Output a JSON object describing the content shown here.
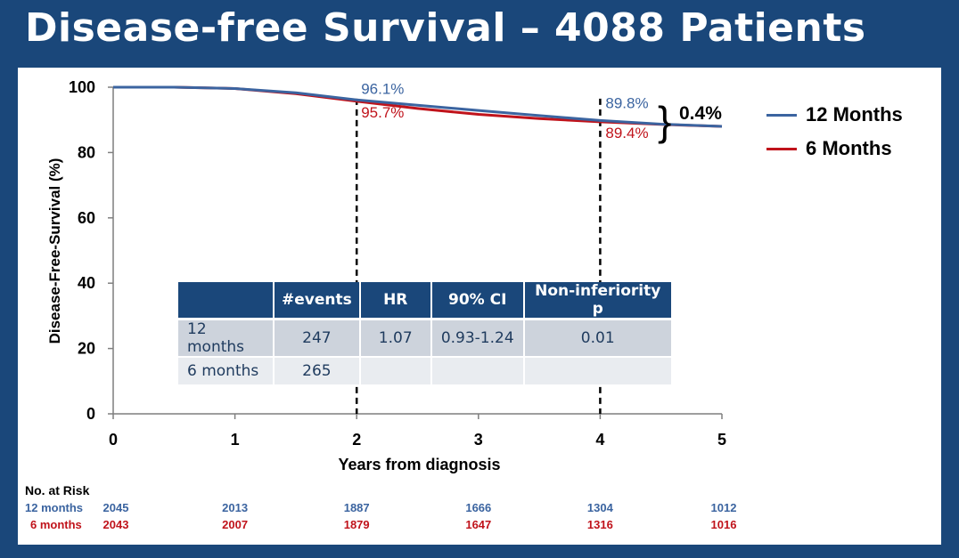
{
  "title": "Disease-free Survival – 4088 Patients",
  "chart_data": {
    "type": "line",
    "xlabel": "Years from diagnosis",
    "ylabel": "Disease-Free-Survival (%)",
    "xlim": [
      0,
      5
    ],
    "ylim": [
      0,
      100
    ],
    "xticks": [
      0,
      1,
      2,
      3,
      4,
      5
    ],
    "yticks": [
      0,
      20,
      40,
      60,
      80,
      100
    ],
    "legend_position": "right",
    "series": [
      {
        "name": "12 Months",
        "color": "#3b64a0",
        "points": [
          [
            0,
            100
          ],
          [
            0.5,
            100
          ],
          [
            1,
            99.6
          ],
          [
            1.5,
            98.3
          ],
          [
            2,
            96.1
          ],
          [
            2.5,
            94.5
          ],
          [
            3,
            92.9
          ],
          [
            3.5,
            91.3
          ],
          [
            4,
            89.8
          ],
          [
            4.5,
            88.7
          ],
          [
            5,
            88.0
          ]
        ]
      },
      {
        "name": "6 Months",
        "color": "#c0131b",
        "points": [
          [
            0,
            100
          ],
          [
            0.5,
            100
          ],
          [
            1,
            99.6
          ],
          [
            1.5,
            98.0
          ],
          [
            2,
            95.7
          ],
          [
            2.5,
            93.5
          ],
          [
            3,
            91.7
          ],
          [
            3.5,
            90.4
          ],
          [
            4,
            89.4
          ],
          [
            4.5,
            88.6
          ],
          [
            5,
            88.0
          ]
        ]
      }
    ],
    "annotations": {
      "a12_2": "96.1%",
      "a6_2": "95.7%",
      "a12_4": "89.8%",
      "a6_4": "89.4%",
      "diff": "0.4%"
    },
    "dashed_x": [
      2,
      4
    ]
  },
  "table": {
    "headers": [
      "",
      "#events",
      "HR",
      "90% CI",
      "Non-inferiority p"
    ],
    "rows": [
      [
        "12 months",
        "247",
        "1.07",
        "0.93-1.24",
        "0.01"
      ],
      [
        "6 months",
        "265",
        "",
        "",
        ""
      ]
    ]
  },
  "risk": {
    "title": "No. at Risk",
    "label12": "12 months",
    "label6": "6 months",
    "values12": [
      "2045",
      "2013",
      "1887",
      "1666",
      "1304",
      "1012"
    ],
    "values6": [
      "2043",
      "2007",
      "1879",
      "1647",
      "1316",
      "1016"
    ]
  },
  "colors": {
    "blue": "#3b64a0",
    "red": "#c0131b",
    "banner": "#1a477a"
  }
}
